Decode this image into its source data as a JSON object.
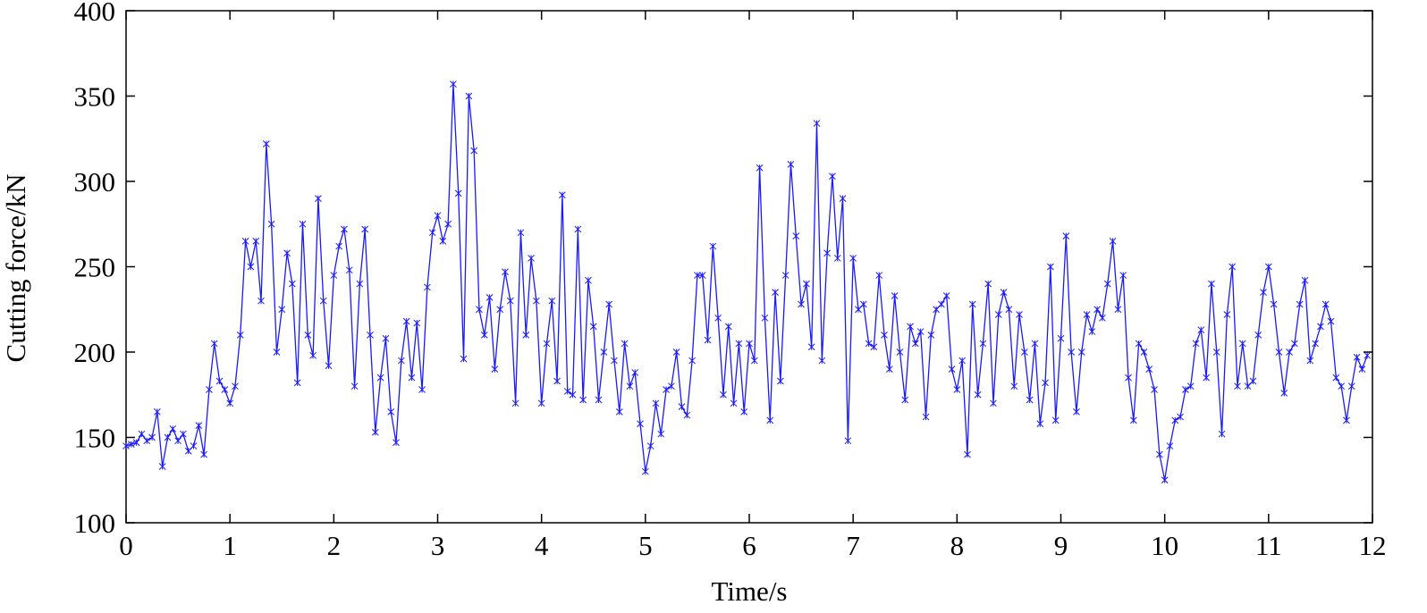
{
  "chart_data": {
    "type": "line",
    "xlabel": "Time/s",
    "ylabel": "Cutting force/kN",
    "xlim": [
      0,
      12
    ],
    "ylim": [
      100,
      400
    ],
    "xticks": [
      0,
      1,
      2,
      3,
      4,
      5,
      6,
      7,
      8,
      9,
      10,
      11,
      12
    ],
    "yticks": [
      100,
      150,
      200,
      250,
      300,
      350,
      400
    ],
    "grid": false,
    "marker": "star",
    "x": [
      0,
      0.05,
      0.1,
      0.15,
      0.2,
      0.25,
      0.3,
      0.35,
      0.4,
      0.45,
      0.5,
      0.55,
      0.6,
      0.65,
      0.7,
      0.75,
      0.8,
      0.85,
      0.9,
      0.95,
      1,
      1.05,
      1.1,
      1.15,
      1.2,
      1.25,
      1.3,
      1.35,
      1.4,
      1.45,
      1.5,
      1.55,
      1.6,
      1.65,
      1.7,
      1.75,
      1.8,
      1.85,
      1.9,
      1.95,
      2,
      2.05,
      2.1,
      2.15,
      2.2,
      2.25,
      2.3,
      2.35,
      2.4,
      2.45,
      2.5,
      2.55,
      2.6,
      2.65,
      2.7,
      2.75,
      2.8,
      2.85,
      2.9,
      2.95,
      3,
      3.05,
      3.1,
      3.15,
      3.2,
      3.25,
      3.3,
      3.35,
      3.4,
      3.45,
      3.5,
      3.55,
      3.6,
      3.65,
      3.7,
      3.75,
      3.8,
      3.85,
      3.9,
      3.95,
      4,
      4.05,
      4.1,
      4.15,
      4.2,
      4.25,
      4.3,
      4.35,
      4.4,
      4.45,
      4.5,
      4.55,
      4.6,
      4.65,
      4.7,
      4.75,
      4.8,
      4.85,
      4.9,
      4.95,
      5,
      5.05,
      5.1,
      5.15,
      5.2,
      5.25,
      5.3,
      5.35,
      5.4,
      5.45,
      5.5,
      5.55,
      5.6,
      5.65,
      5.7,
      5.75,
      5.8,
      5.85,
      5.9,
      5.95,
      6,
      6.05,
      6.1,
      6.15,
      6.2,
      6.25,
      6.3,
      6.35,
      6.4,
      6.45,
      6.5,
      6.55,
      6.6,
      6.65,
      6.7,
      6.75,
      6.8,
      6.85,
      6.9,
      6.95,
      7,
      7.05,
      7.1,
      7.15,
      7.2,
      7.25,
      7.3,
      7.35,
      7.4,
      7.45,
      7.5,
      7.55,
      7.6,
      7.65,
      7.7,
      7.75,
      7.8,
      7.85,
      7.9,
      7.95,
      8,
      8.05,
      8.1,
      8.15,
      8.2,
      8.25,
      8.3,
      8.35,
      8.4,
      8.45,
      8.5,
      8.55,
      8.6,
      8.65,
      8.7,
      8.75,
      8.8,
      8.85,
      8.9,
      8.95,
      9,
      9.05,
      9.1,
      9.15,
      9.2,
      9.25,
      9.3,
      9.35,
      9.4,
      9.45,
      9.5,
      9.55,
      9.6,
      9.65,
      9.7,
      9.75,
      9.8,
      9.85,
      9.9,
      9.95,
      10,
      10.05,
      10.1,
      10.15,
      10.2,
      10.25,
      10.3,
      10.35,
      10.4,
      10.45,
      10.5,
      10.55,
      10.6,
      10.65,
      10.7,
      10.75,
      10.8,
      10.85,
      10.9,
      10.95,
      11,
      11.05,
      11.1,
      11.15,
      11.2,
      11.25,
      11.3,
      11.35,
      11.4,
      11.45,
      11.5,
      11.55,
      11.6,
      11.65,
      11.7,
      11.75,
      11.8,
      11.85,
      11.9,
      11.95
    ],
    "series": [
      {
        "color": "#1a1aff",
        "values": [
          145,
          146,
          147,
          152,
          148,
          150,
          165,
          133,
          150,
          155,
          148,
          152,
          142,
          145,
          157,
          140,
          178,
          205,
          183,
          178,
          170,
          180,
          210,
          265,
          250,
          265,
          230,
          322,
          275,
          200,
          225,
          258,
          240,
          182,
          275,
          210,
          198,
          290,
          230,
          192,
          245,
          262,
          272,
          248,
          180,
          240,
          272,
          210,
          153,
          185,
          208,
          165,
          147,
          195,
          218,
          185,
          217,
          178,
          238,
          270,
          280,
          265,
          275,
          357,
          293,
          196,
          350,
          318,
          225,
          210,
          232,
          190,
          225,
          247,
          230,
          170,
          270,
          210,
          255,
          230,
          170,
          205,
          230,
          183,
          292,
          177,
          175,
          272,
          172,
          242,
          215,
          172,
          200,
          228,
          195,
          165,
          205,
          180,
          188,
          158,
          130,
          145,
          170,
          152,
          178,
          180,
          200,
          168,
          163,
          195,
          245,
          245,
          207,
          262,
          220,
          175,
          215,
          170,
          205,
          165,
          205,
          195,
          308,
          220,
          160,
          235,
          183,
          245,
          310,
          268,
          228,
          240,
          203,
          334,
          195,
          258,
          303,
          255,
          290,
          148,
          255,
          225,
          228,
          205,
          203,
          245,
          210,
          190,
          233,
          200,
          172,
          215,
          205,
          212,
          162,
          210,
          225,
          228,
          233,
          190,
          178,
          195,
          140,
          228,
          175,
          205,
          240,
          170,
          222,
          235,
          225,
          180,
          222,
          200,
          172,
          205,
          158,
          182,
          250,
          160,
          208,
          268,
          200,
          165,
          200,
          222,
          212,
          225,
          220,
          240,
          265,
          225,
          245,
          185,
          160,
          205,
          200,
          190,
          178,
          140,
          125,
          145,
          160,
          162,
          178,
          180,
          205,
          213,
          185,
          240,
          200,
          152,
          222,
          250,
          180,
          205,
          180,
          183,
          210,
          235,
          250,
          228,
          200,
          176,
          200,
          205,
          228,
          242,
          195,
          205,
          215,
          228,
          218,
          185,
          180,
          160,
          180,
          197,
          190,
          198
        ]
      }
    ]
  }
}
